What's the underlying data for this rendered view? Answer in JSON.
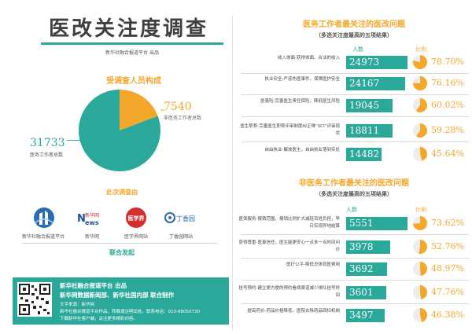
{
  "title": "医改关注度调查",
  "publisher": "新华社融合报道平台  出品",
  "respondents": {
    "title": "受调查人员构成",
    "segments": [
      {
        "value": "7540",
        "label": "非医务工作者总数",
        "count": 7540,
        "color": "#f4a82b"
      },
      {
        "value": "31733",
        "label": "医务工作者总数",
        "count": 31733,
        "color": "#2aa89a"
      }
    ]
  },
  "sources": {
    "title": "此次调查由",
    "items": [
      {
        "name": "新华社融合报道平台"
      },
      {
        "name": "新华网",
        "logo_text": "新华网"
      },
      {
        "name": "医学界网站",
        "logo_text": "医学界"
      },
      {
        "name": "丁香园网站",
        "logo_text": "丁香园"
      }
    ],
    "joint": "联合发起"
  },
  "footer": {
    "line1": "新华社融合报道平台 出品",
    "line2": "新华网数据新闻部、新华社国内部  联合制作",
    "line3": "文字来源：新华网",
    "line4": "新华社融合报道平台作品，转载请注明出处。联系电话：010-88050730",
    "line5": "下载新华社客户端，关注更多精彩内容。"
  },
  "chart_data": [
    {
      "type": "bar",
      "title": "医务工作者最关注的医改问题",
      "subtitle": "（多选关注度最高的五项结果）",
      "value_header": "人数",
      "pct_header": "比例",
      "categories": [
        "收入体面-获得体面、合法的收入",
        "执业安全-严惩伤医事件，保障医护安全",
        "医患险-完善医生责任保险，降低医生风险",
        "医生职称-完善医生职称评审制度纠正唯“SCI”评审现状",
        "自由执业-解放医生，自由执业落到实处"
      ],
      "values": [
        24973,
        24167,
        19045,
        18811,
        14482
      ],
      "value_labels": [
        "24973",
        "24167",
        "19045",
        "18811",
        "14482"
      ],
      "percents": [
        78.7,
        76.16,
        60.02,
        59.28,
        45.64
      ],
      "pct_labels": [
        "78.70%",
        "76.16%",
        "60.02%",
        "59.28%",
        "45.64%"
      ],
      "color": "#2aa89a",
      "pct_color": "#f4a82b"
    },
    {
      "type": "bar",
      "title": "非医务工作者最关注的医改问题",
      "subtitle": "（多选关注度最高的五项结果）",
      "value_header": "人数",
      "pct_header": "比例",
      "categories": [
        "医保服务-报销范围、报销比例扩大减轻百姓负担，早日实现异地结算",
        "获得尊重-医患信任，医生能更安心一点多一点时间问诊",
        "医疗公平-降低总体就医费用",
        "挂号预约-建立更方便的预约看病渠道减少排队挂号时间",
        "提高药价-药品价格降低，医院去除药品回扣机制"
      ],
      "values": [
        5551,
        3978,
        3692,
        3601,
        3497
      ],
      "value_labels": [
        "5551",
        "3978",
        "3692",
        "3601",
        "3497"
      ],
      "percents": [
        73.62,
        52.76,
        48.97,
        47.76,
        46.38
      ],
      "pct_labels": [
        "73.62%",
        "52.76%",
        "48.97%",
        "47.76%",
        "46.38%"
      ],
      "color": "#2aa89a",
      "pct_color": "#f4a82b"
    }
  ]
}
